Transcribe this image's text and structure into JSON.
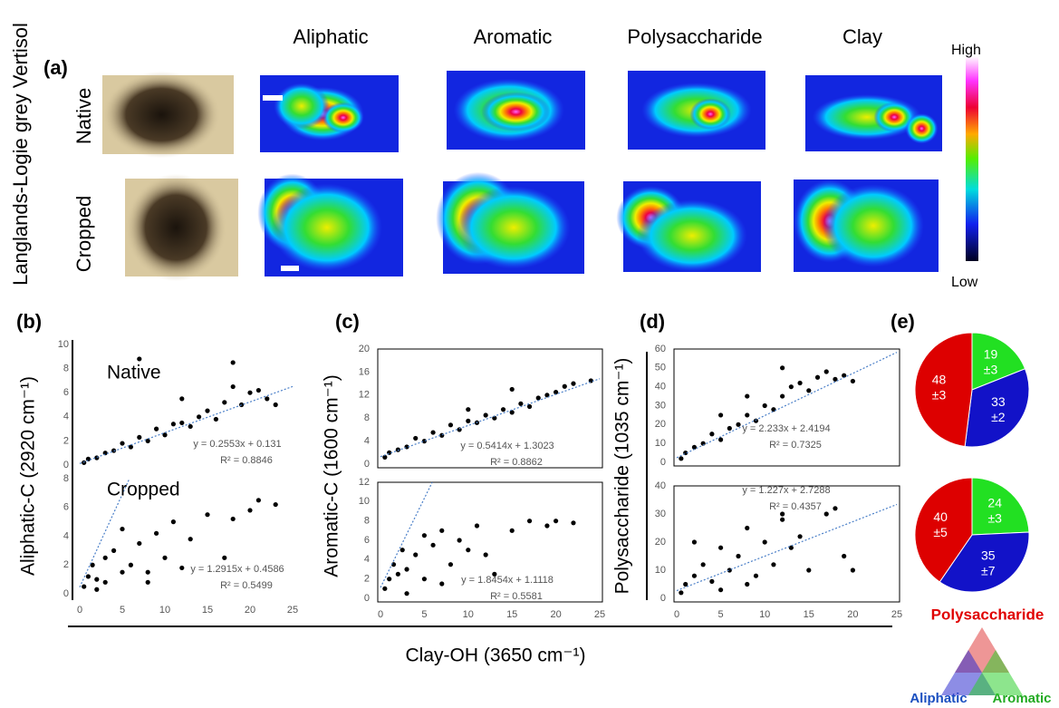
{
  "figure": {
    "side_label": "Langlands-Logie grey Vertisol",
    "panel_labels": [
      "(a)",
      "(b)",
      "(c)",
      "(d)",
      "(e)"
    ],
    "columns": [
      "Aliphatic",
      "Aromatic",
      "Polysaccharide",
      "Clay"
    ],
    "rows": [
      "Native",
      "Cropped"
    ],
    "scale_high": "High",
    "scale_low": "Low",
    "y_labels": [
      "Aliphatic-C (2920 cm⁻¹)",
      "Aromatic-C (1600 cm⁻¹)",
      "Polysaccharide (1035 cm⁻¹)"
    ],
    "x_label": "Clay-OH (3650 cm⁻¹)"
  },
  "chart_data": [
    {
      "type": "scatter",
      "title": "Native",
      "xlim": [
        0,
        25
      ],
      "ylim": [
        0,
        10
      ],
      "yticks": [
        0,
        2,
        4,
        6,
        8,
        10
      ],
      "equation": "y = 0.2553x + 0.131",
      "r2": "R² = 0.8846",
      "trend": {
        "slope": 0.2553,
        "intercept": 0.131
      },
      "x": [
        0.5,
        1,
        2,
        3,
        4,
        5,
        6,
        7,
        8,
        9,
        10,
        11,
        12,
        13,
        14,
        15,
        16,
        17,
        18,
        19,
        20,
        21,
        22,
        23,
        7,
        18,
        12
      ],
      "y": [
        0.2,
        0.5,
        0.6,
        1.0,
        1.2,
        1.8,
        1.5,
        2.3,
        2.0,
        3.0,
        2.5,
        3.4,
        3.5,
        3.2,
        4.0,
        4.5,
        3.8,
        5.2,
        6.5,
        5.0,
        6.0,
        6.2,
        5.5,
        5.0,
        8.8,
        8.5,
        5.5
      ]
    },
    {
      "type": "scatter",
      "title": "Cropped",
      "xlim": [
        0,
        25
      ],
      "ylim": [
        0,
        8
      ],
      "yticks": [
        0,
        2,
        4,
        6,
        8
      ],
      "xticks": [
        0,
        5,
        10,
        15,
        20,
        25
      ],
      "equation": "y = 1.2915x + 0.4586",
      "r2": "R² = 0.5499",
      "trend": {
        "slope": 1.2915,
        "intercept": 0.4586
      },
      "x": [
        0.5,
        1,
        1.5,
        2,
        3,
        3,
        4,
        5,
        5,
        6,
        7,
        8,
        9,
        10,
        11,
        12,
        13,
        15,
        17,
        18,
        20,
        21,
        23,
        2,
        8
      ],
      "y": [
        0.5,
        1.2,
        2.0,
        1.0,
        2.5,
        0.8,
        3.0,
        1.5,
        4.5,
        2.0,
        3.5,
        1.5,
        4.2,
        2.5,
        5.0,
        1.8,
        3.8,
        5.5,
        2.5,
        5.2,
        5.8,
        6.5,
        6.2,
        0.3,
        0.8
      ]
    },
    {
      "type": "scatter",
      "xlim": [
        0,
        25
      ],
      "ylim": [
        0,
        20
      ],
      "yticks": [
        0,
        4,
        8,
        12,
        16,
        20
      ],
      "equation": "y = 0.5414x + 1.3023",
      "r2": "R² = 0.8862",
      "trend": {
        "slope": 0.5414,
        "intercept": 1.3023
      },
      "x": [
        0.5,
        1,
        2,
        3,
        4,
        5,
        6,
        7,
        8,
        9,
        10,
        11,
        12,
        13,
        14,
        15,
        16,
        17,
        18,
        19,
        20,
        21,
        22,
        24,
        10,
        15
      ],
      "y": [
        1.2,
        2.0,
        2.5,
        3.0,
        4.5,
        4.0,
        5.5,
        5.0,
        6.8,
        6.0,
        7.5,
        7.2,
        8.5,
        8.0,
        9.5,
        9.0,
        10.5,
        10.0,
        11.5,
        12.0,
        12.5,
        13.5,
        14.0,
        14.5,
        9.5,
        13.0
      ]
    },
    {
      "type": "scatter",
      "xlim": [
        0,
        25
      ],
      "ylim": [
        0,
        12
      ],
      "yticks": [
        0,
        2,
        4,
        6,
        8,
        10,
        12
      ],
      "xticks": [
        0,
        5,
        10,
        15,
        20,
        25
      ],
      "equation": "y = 1.8454x + 1.1118",
      "r2": "R² = 0.5581",
      "trend": {
        "slope": 1.8454,
        "intercept": 1.1118
      },
      "x": [
        0.5,
        1,
        1.5,
        2,
        2.5,
        3,
        4,
        5,
        5,
        6,
        7,
        8,
        9,
        10,
        11,
        12,
        13,
        15,
        17,
        19,
        20,
        22,
        3,
        7
      ],
      "y": [
        1.0,
        2.0,
        3.5,
        2.5,
        5.0,
        3.0,
        4.5,
        2.0,
        6.5,
        5.5,
        7.0,
        3.5,
        6.0,
        5.0,
        7.5,
        4.5,
        2.5,
        7.0,
        8.0,
        7.5,
        8.0,
        7.8,
        0.5,
        1.5
      ]
    },
    {
      "type": "scatter",
      "xlim": [
        0,
        25
      ],
      "ylim": [
        0,
        60
      ],
      "yticks": [
        0,
        10,
        20,
        30,
        40,
        50,
        60
      ],
      "equation": "y = 2.233x + 2.4194",
      "r2": "R² = 0.7325",
      "trend": {
        "slope": 2.233,
        "intercept": 2.4194
      },
      "x": [
        0.5,
        1,
        2,
        3,
        4,
        5,
        6,
        7,
        8,
        9,
        10,
        11,
        12,
        13,
        14,
        15,
        16,
        17,
        18,
        19,
        20,
        8,
        12,
        5
      ],
      "y": [
        2,
        5,
        8,
        10,
        15,
        12,
        18,
        20,
        25,
        22,
        30,
        28,
        35,
        40,
        42,
        38,
        45,
        48,
        44,
        46,
        43,
        35,
        50,
        25
      ]
    },
    {
      "type": "scatter",
      "xlim": [
        0,
        25
      ],
      "ylim": [
        0,
        40
      ],
      "yticks": [
        0,
        10,
        20,
        30,
        40
      ],
      "xticks": [
        0,
        5,
        10,
        15,
        20,
        25
      ],
      "equation": "y = 1.227x + 2.7288",
      "r2": "R² = 0.4357",
      "trend": {
        "slope": 1.227,
        "intercept": 2.7288
      },
      "x": [
        0.5,
        1,
        2,
        3,
        4,
        5,
        6,
        7,
        8,
        9,
        10,
        11,
        12,
        13,
        14,
        15,
        17,
        18,
        19,
        20,
        2,
        5,
        8,
        12
      ],
      "y": [
        2,
        5,
        8,
        12,
        6,
        18,
        10,
        15,
        25,
        8,
        20,
        12,
        30,
        18,
        22,
        10,
        30,
        32,
        15,
        10,
        20,
        3,
        5,
        28
      ]
    },
    {
      "type": "pie",
      "categories": [
        "Aromatic",
        "Aliphatic",
        "Polysaccharide"
      ],
      "colors": [
        "#22e022",
        "#1212c8",
        "#dd0000"
      ],
      "values": [
        19,
        33,
        48
      ],
      "error_labels": [
        "±3",
        "±2",
        "±3"
      ]
    },
    {
      "type": "pie",
      "colors": [
        "#22e022",
        "#1212c8",
        "#dd0000"
      ],
      "values": [
        24,
        35,
        40
      ],
      "error_labels": [
        "±3",
        "±7",
        "±5"
      ]
    }
  ]
}
